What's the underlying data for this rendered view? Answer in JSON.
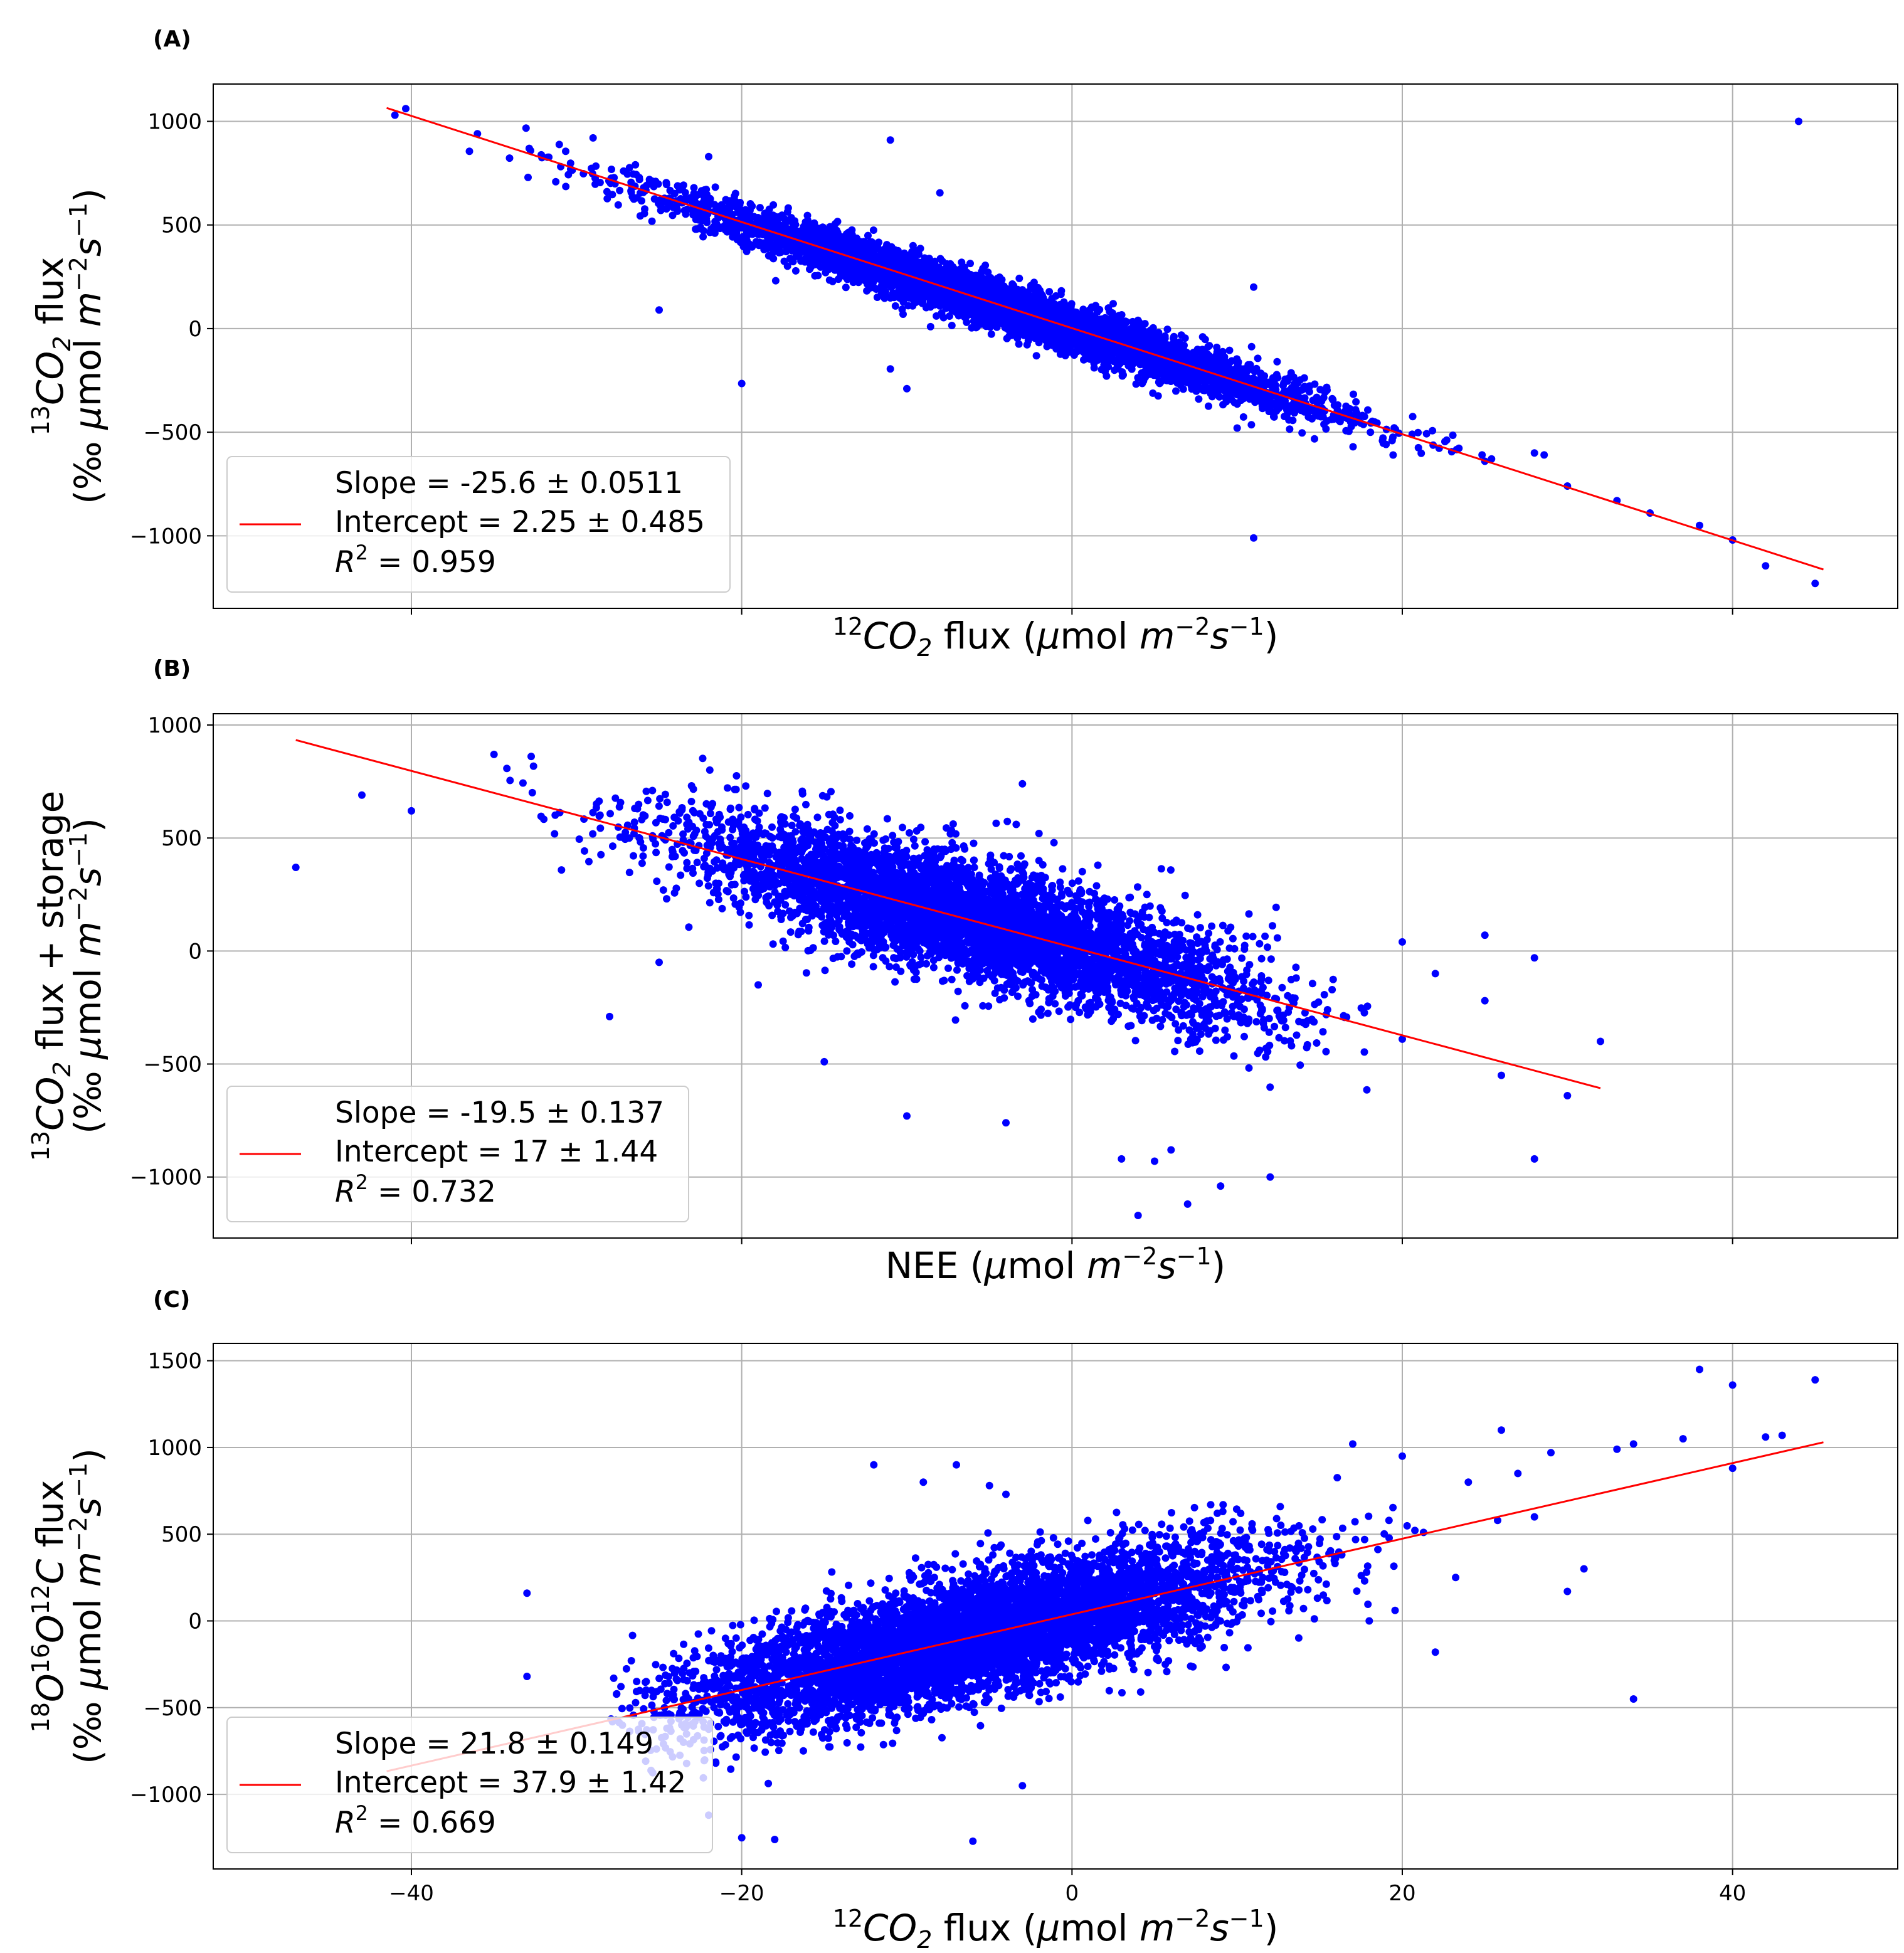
{
  "colors": {
    "points": "#0000ff",
    "fit_line": "#ff0000",
    "grid": "#b0b0b0",
    "axes": "#000000",
    "legend_border": "#cccccc"
  },
  "chart_data": [
    {
      "type": "scatter",
      "panel_label": "(A)",
      "xlim": [
        -52,
        50
      ],
      "ylim": [
        -1350,
        1180
      ],
      "xticks": [
        -40,
        -20,
        0,
        20,
        40
      ],
      "xtick_labels_visible": false,
      "yticks": [
        1000,
        500,
        0,
        -500,
        -1000
      ],
      "ytick_labels": [
        "1000",
        "500",
        "0",
        "−500",
        "−1000"
      ],
      "xlabel": {
        "pre": "12",
        "base": "CO",
        "sub": "2",
        "post": " flux (",
        "mu": "μ",
        "unit": "mol ",
        "m": "m",
        "mexp": "−2",
        "s": "s",
        "sexp": "−1",
        "close": ")"
      },
      "ylabel": {
        "line1_sup": "13",
        "line1_base": "CO",
        "line1_sub": "2",
        "line1_rest": " flux",
        "line2": "(‰ ",
        "mu": "μ",
        "unit": "mol ",
        "m": "m",
        "mexp": "−2",
        "s": "s",
        "sexp": "−1",
        "close": ")"
      },
      "fit": {
        "slope": -25.6,
        "intercept": 2.25,
        "x_range": [
          -41.5,
          45.5
        ]
      },
      "legend": {
        "slope": "Slope = -25.6 ± 0.0511",
        "intercept": "Intercept = 2.25 ± 0.485",
        "r2_value": " = 0.959"
      },
      "scatter": {
        "n": 6000,
        "x_mean": -4,
        "x_sd": 9,
        "x_clip": [
          -41,
          45
        ],
        "noise_sd": 55,
        "outliers": [
          [
            -41,
            1030
          ],
          [
            -11,
            910
          ],
          [
            -20,
            -265
          ],
          [
            -25,
            90
          ],
          [
            -11,
            -195
          ],
          [
            -10,
            -290
          ],
          [
            11,
            200
          ],
          [
            11,
            -1010
          ],
          [
            10,
            -480
          ],
          [
            -8,
            655
          ],
          [
            -29,
            920
          ],
          [
            44,
            1000
          ],
          [
            45,
            -1230
          ],
          [
            42,
            -1145
          ],
          [
            40,
            -1020
          ],
          [
            38,
            -950
          ],
          [
            35,
            -890
          ],
          [
            33,
            -830
          ],
          [
            30,
            -760
          ],
          [
            28,
            -600
          ],
          [
            25,
            -640
          ],
          [
            -36,
            940
          ],
          [
            -22,
            830
          ]
        ]
      }
    },
    {
      "type": "scatter",
      "panel_label": "(B)",
      "xlim": [
        -52,
        50
      ],
      "ylim": [
        -1270,
        1050
      ],
      "xticks": [
        -40,
        -20,
        0,
        20,
        40
      ],
      "xtick_labels_visible": false,
      "yticks": [
        1000,
        500,
        0,
        -500,
        -1000
      ],
      "ytick_labels": [
        "1000",
        "500",
        "0",
        "−500",
        "−1000"
      ],
      "xlabel": {
        "text": "NEE (",
        "mu": "μ",
        "unit": "mol ",
        "m": "m",
        "mexp": "−2",
        "s": "s",
        "sexp": "−1",
        "close": ")"
      },
      "ylabel": {
        "line1_sup": "13",
        "line1_base": "CO",
        "line1_sub": "2",
        "line1_rest": " flux + storage",
        "line2": "(‰ ",
        "mu": "μ",
        "unit": "mol ",
        "m": "m",
        "mexp": "−2",
        "s": "s",
        "sexp": "−1",
        "close": ")"
      },
      "fit": {
        "slope": -19.5,
        "intercept": 17,
        "x_range": [
          -47,
          32
        ]
      },
      "legend": {
        "slope": "Slope = -19.5 ± 0.137",
        "intercept": "Intercept = 17 ± 1.44",
        "r2_value": " = 0.732"
      },
      "scatter": {
        "n": 5000,
        "x_mean": -6,
        "x_sd": 8.5,
        "x_clip": [
          -36,
          18
        ],
        "noise_sd": 130,
        "outliers": [
          [
            -47,
            370
          ],
          [
            -43,
            690
          ],
          [
            -40,
            620
          ],
          [
            -35,
            870
          ],
          [
            -28,
            -290
          ],
          [
            -25,
            -50
          ],
          [
            -19,
            -150
          ],
          [
            -15,
            -490
          ],
          [
            -10,
            -730
          ],
          [
            -3,
            740
          ],
          [
            -2,
            520
          ],
          [
            -2,
            400
          ],
          [
            3,
            -920
          ],
          [
            5,
            -930
          ],
          [
            6,
            -880
          ],
          [
            7,
            -1120
          ],
          [
            9,
            -1040
          ],
          [
            4,
            -1170
          ],
          [
            -4,
            -760
          ],
          [
            12,
            -1000
          ],
          [
            20,
            40
          ],
          [
            22,
            -100
          ],
          [
            25,
            70
          ],
          [
            25,
            -220
          ],
          [
            26,
            -550
          ],
          [
            28,
            -920
          ],
          [
            30,
            -640
          ],
          [
            32,
            -400
          ],
          [
            20,
            -390
          ],
          [
            28,
            -30
          ]
        ]
      }
    },
    {
      "type": "scatter",
      "panel_label": "(C)",
      "xlim": [
        -52,
        50
      ],
      "ylim": [
        -1430,
        1600
      ],
      "xticks": [
        -40,
        -20,
        0,
        20,
        40
      ],
      "xtick_labels": [
        "−40",
        "−20",
        "0",
        "20",
        "40"
      ],
      "xtick_labels_visible": true,
      "yticks": [
        1500,
        1000,
        500,
        0,
        -500,
        -1000
      ],
      "ytick_labels": [
        "1500",
        "1000",
        "500",
        "0",
        "−500",
        "−1000"
      ],
      "xlabel": {
        "pre": "12",
        "base": "CO",
        "sub": "2",
        "post": " flux (",
        "mu": "μ",
        "unit": "mol ",
        "m": "m",
        "mexp": "−2",
        "s": "s",
        "sexp": "−1",
        "close": ")"
      },
      "ylabel": {
        "s1": "18",
        "b1": "O",
        "s2": "16",
        "b2": "O",
        "s3": "12",
        "b3": "C",
        "rest": " flux",
        "line2": "(‰ ",
        "mu": "μ",
        "unit": "mol ",
        "m": "m",
        "mexp": "−2",
        "s": "s",
        "sexp": "−1",
        "close": ")"
      },
      "fit": {
        "slope": 21.8,
        "intercept": 37.9,
        "x_range": [
          -41.5,
          45.5
        ]
      },
      "legend": {
        "slope": "Slope = 21.8 ± 0.149",
        "intercept": "Intercept = 37.9 ± 1.42",
        "r2_value": " = 0.669"
      },
      "scatter": {
        "n": 6000,
        "x_mean": -6,
        "x_sd": 8.5,
        "x_clip": [
          -28,
          26
        ],
        "noise_sd": 170,
        "outliers": [
          [
            -33,
            160
          ],
          [
            -33,
            -320
          ],
          [
            -22,
            -1120
          ],
          [
            -20,
            -1250
          ],
          [
            -18,
            -1260
          ],
          [
            -12,
            900
          ],
          [
            -7,
            900
          ],
          [
            -3,
            -950
          ],
          [
            -6,
            -1270
          ],
          [
            -5,
            780
          ],
          [
            -4,
            730
          ],
          [
            17,
            1020
          ],
          [
            26,
            1100
          ],
          [
            29,
            970
          ],
          [
            30,
            170
          ],
          [
            31,
            300
          ],
          [
            34,
            -450
          ],
          [
            34,
            1020
          ],
          [
            37,
            1050
          ],
          [
            38,
            1450
          ],
          [
            40,
            1360
          ],
          [
            42,
            1060
          ],
          [
            43,
            1070
          ],
          [
            45,
            1390
          ],
          [
            40,
            880
          ],
          [
            22,
            -180
          ],
          [
            20,
            950
          ],
          [
            24,
            800
          ],
          [
            27,
            850
          ],
          [
            28,
            600
          ],
          [
            18,
            0
          ],
          [
            33,
            990
          ],
          [
            -9,
            800
          ]
        ]
      }
    }
  ]
}
